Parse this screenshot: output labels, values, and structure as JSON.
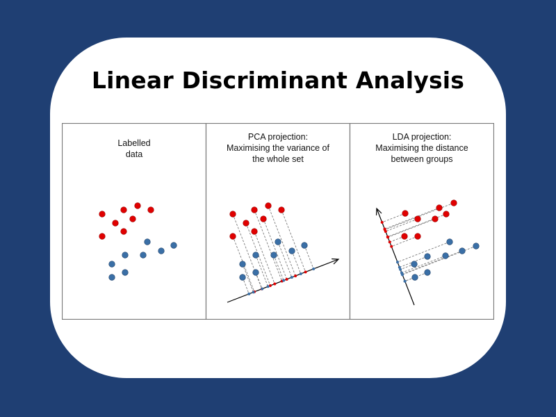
{
  "title": "Linear Discriminant Analysis",
  "panels": [
    {
      "caption": [
        "Labelled",
        "data"
      ]
    },
    {
      "caption": [
        "PCA projection:",
        "Maximising the variance of",
        "the whole set"
      ]
    },
    {
      "caption": [
        "LDA projection:",
        "Maximising the distance",
        "between groups"
      ]
    }
  ],
  "colors": {
    "class_a": "#e00000",
    "class_b": "#3a6fa6",
    "background": "#1f3f73"
  }
}
